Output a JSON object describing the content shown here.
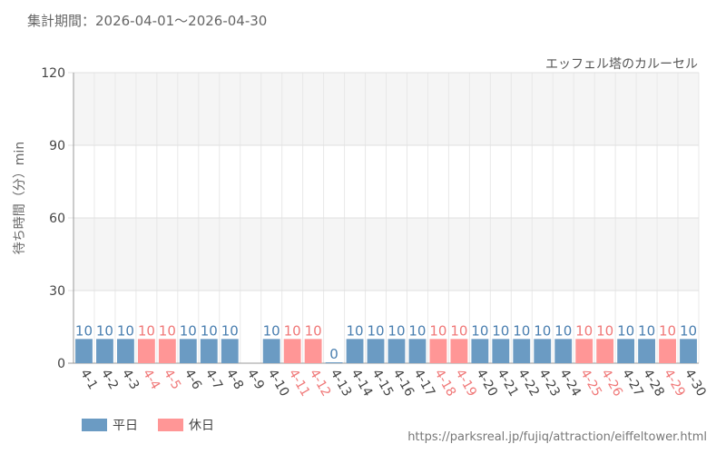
{
  "period_text": "集計期間：2026-04-01～2026-04-30",
  "source_url": "https://parksreal.jp/fujiq/attraction/eiffeltower.html",
  "colors": {
    "weekday": "#6b9bc3",
    "holiday": "#ff9696",
    "weekday_label": "#4a7fb0",
    "holiday_label": "#f07878"
  },
  "chart_data": {
    "type": "bar",
    "title": "エッフェル塔のカルーセル",
    "ylabel": "待ち時間（分）min",
    "xlabel": "",
    "ylim": [
      0,
      120
    ],
    "yticks": [
      0,
      30,
      60,
      90,
      120
    ],
    "grid": true,
    "legend_position": "bottom-left",
    "series": [
      {
        "name": "平日",
        "color": "#6b9bc3"
      },
      {
        "name": "休日",
        "color": "#ff9696"
      }
    ],
    "categories": [
      "4-1",
      "4-2",
      "4-3",
      "4-4",
      "4-5",
      "4-6",
      "4-7",
      "4-8",
      "4-9",
      "4-10",
      "4-11",
      "4-12",
      "4-13",
      "4-14",
      "4-15",
      "4-16",
      "4-17",
      "4-18",
      "4-19",
      "4-20",
      "4-21",
      "4-22",
      "4-23",
      "4-24",
      "4-25",
      "4-26",
      "4-27",
      "4-28",
      "4-29",
      "4-30"
    ],
    "values": [
      10,
      10,
      10,
      10,
      10,
      10,
      10,
      10,
      null,
      10,
      10,
      10,
      0,
      10,
      10,
      10,
      10,
      10,
      10,
      10,
      10,
      10,
      10,
      10,
      10,
      10,
      10,
      10,
      10,
      10
    ],
    "day_type": [
      "平日",
      "平日",
      "平日",
      "休日",
      "休日",
      "平日",
      "平日",
      "平日",
      "平日",
      "平日",
      "休日",
      "休日",
      "平日",
      "平日",
      "平日",
      "平日",
      "平日",
      "休日",
      "休日",
      "平日",
      "平日",
      "平日",
      "平日",
      "平日",
      "休日",
      "休日",
      "平日",
      "平日",
      "休日",
      "平日"
    ]
  }
}
